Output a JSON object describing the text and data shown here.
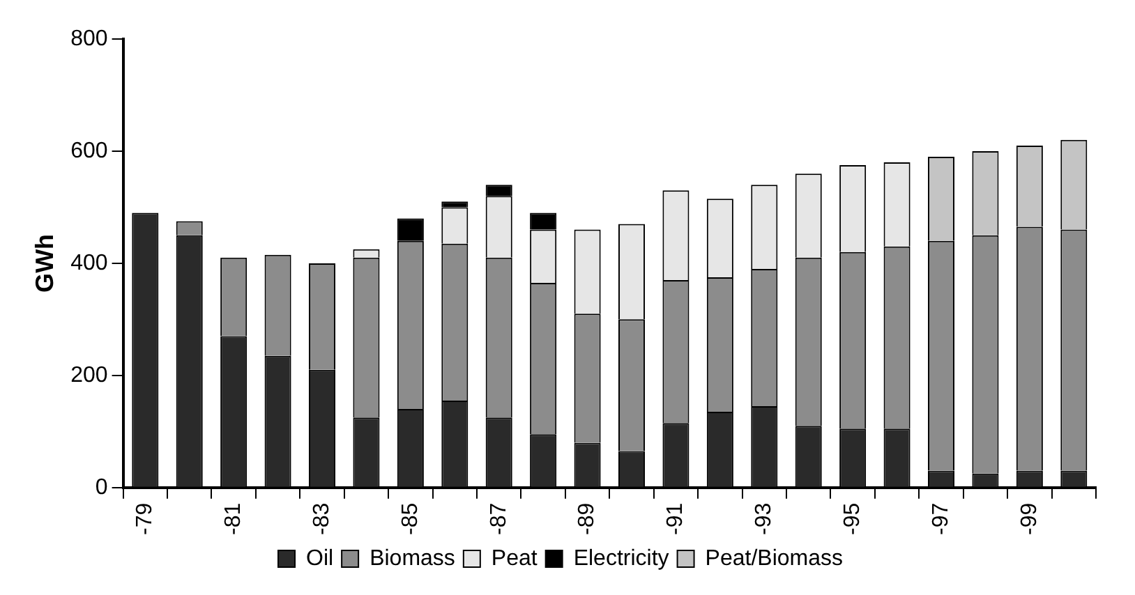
{
  "chart_data": {
    "type": "bar",
    "ylabel": "GWh",
    "stacked": true,
    "ylim": [
      0,
      800
    ],
    "yticks": [
      0,
      200,
      400,
      600,
      800
    ],
    "grid": false,
    "legend": "bottom",
    "categories": [
      "-79",
      null,
      "-81",
      null,
      "-83",
      null,
      "-85",
      null,
      "-87",
      null,
      "-89",
      null,
      "-91",
      null,
      "-93",
      null,
      "-95",
      null,
      "-97",
      null,
      "-99",
      null
    ],
    "series": [
      {
        "name": "Oil",
        "color": "#2a2a2a",
        "values": [
          490,
          450,
          270,
          235,
          210,
          125,
          140,
          155,
          125,
          95,
          80,
          65,
          115,
          135,
          145,
          110,
          105,
          105,
          30,
          25,
          30,
          30
        ]
      },
      {
        "name": "Biomass",
        "color": "#8c8c8c",
        "values": [
          null,
          25,
          140,
          180,
          190,
          285,
          300,
          280,
          285,
          270,
          230,
          235,
          255,
          240,
          245,
          300,
          315,
          325,
          410,
          425,
          435,
          430
        ]
      },
      {
        "name": "Peat",
        "color": "#e6e6e6",
        "values": [
          null,
          null,
          null,
          null,
          null,
          15,
          null,
          65,
          110,
          95,
          150,
          170,
          160,
          140,
          150,
          150,
          155,
          150,
          null,
          null,
          null,
          null
        ]
      },
      {
        "name": "Electricity",
        "color": "#000000",
        "values": [
          null,
          null,
          null,
          null,
          null,
          null,
          40,
          10,
          20,
          30,
          null,
          null,
          null,
          null,
          null,
          null,
          null,
          null,
          null,
          null,
          null,
          null
        ]
      },
      {
        "name": "Peat/Biomass",
        "color": "#c4c4c4",
        "values": [
          null,
          null,
          null,
          null,
          null,
          null,
          null,
          null,
          null,
          null,
          null,
          null,
          null,
          null,
          null,
          null,
          null,
          null,
          150,
          150,
          145,
          160
        ]
      }
    ]
  }
}
